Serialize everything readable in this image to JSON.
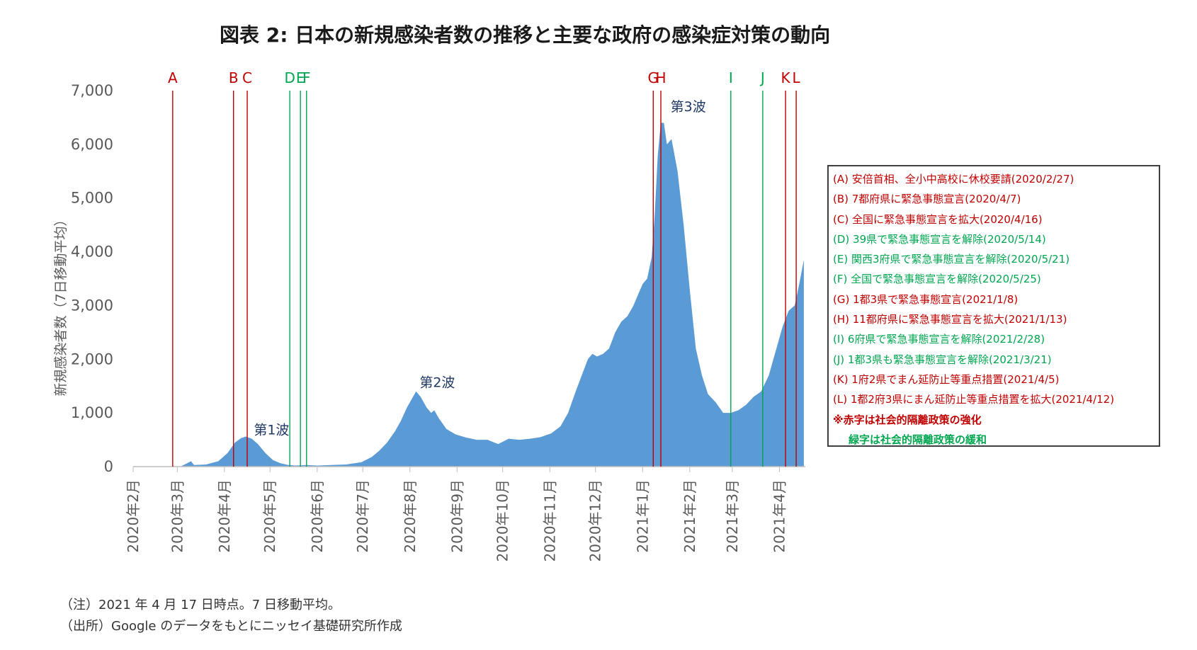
{
  "title": "図表 2: 日本の新規感染者数の推移と主要な政府の感染症対策の動向",
  "colors": {
    "area": "#5b9bd5",
    "tighten": "#c00000",
    "relax": "#00a650",
    "axis": "#595959"
  },
  "chart_data": {
    "type": "area",
    "ylabel": "新規感染者数（7日移動平均）",
    "ylim": [
      0,
      7000
    ],
    "yticks": [
      "0",
      "1,000",
      "2,000",
      "3,000",
      "4,000",
      "5,000",
      "6,000",
      "7,000"
    ],
    "xticks": [
      "2020年2月",
      "2020年3月",
      "2020年4月",
      "2020年5月",
      "2020年6月",
      "2020年7月",
      "2020年8月",
      "2020年9月",
      "2020年10月",
      "2020年11月",
      "2020年12月",
      "2021年1月",
      "2021年2月",
      "2021年3月",
      "2021年4月"
    ],
    "x": [
      "2020-02-01",
      "2020-02-27",
      "2020-03-03",
      "2020-03-08",
      "2020-03-10",
      "2020-03-12",
      "2020-03-20",
      "2020-03-28",
      "2020-04-03",
      "2020-04-08",
      "2020-04-12",
      "2020-04-15",
      "2020-04-19",
      "2020-04-23",
      "2020-04-28",
      "2020-05-03",
      "2020-05-08",
      "2020-05-13",
      "2020-05-18",
      "2020-05-25",
      "2020-06-01",
      "2020-06-10",
      "2020-06-20",
      "2020-06-30",
      "2020-07-07",
      "2020-07-12",
      "2020-07-17",
      "2020-07-22",
      "2020-07-26",
      "2020-07-30",
      "2020-08-03",
      "2020-08-05",
      "2020-08-08",
      "2020-08-12",
      "2020-08-15",
      "2020-08-17",
      "2020-08-20",
      "2020-08-25",
      "2020-08-31",
      "2020-09-07",
      "2020-09-14",
      "2020-09-21",
      "2020-09-28",
      "2020-10-05",
      "2020-10-12",
      "2020-10-19",
      "2020-10-26",
      "2020-11-02",
      "2020-11-08",
      "2020-11-13",
      "2020-11-18",
      "2020-11-22",
      "2020-11-26",
      "2020-11-29",
      "2020-12-02",
      "2020-12-06",
      "2020-12-10",
      "2020-12-14",
      "2020-12-18",
      "2020-12-22",
      "2020-12-26",
      "2020-12-29",
      "2021-01-01",
      "2021-01-04",
      "2021-01-07",
      "2021-01-09",
      "2021-01-11",
      "2021-01-13",
      "2021-01-15",
      "2021-01-17",
      "2021-01-20",
      "2021-01-24",
      "2021-01-28",
      "2021-02-01",
      "2021-02-05",
      "2021-02-09",
      "2021-02-13",
      "2021-02-18",
      "2021-02-23",
      "2021-02-28",
      "2021-03-05",
      "2021-03-10",
      "2021-03-15",
      "2021-03-20",
      "2021-03-25",
      "2021-03-30",
      "2021-04-03",
      "2021-04-07",
      "2021-04-11",
      "2021-04-14",
      "2021-04-17"
    ],
    "values": [
      0,
      0,
      0,
      70,
      100,
      30,
      40,
      100,
      250,
      450,
      530,
      560,
      520,
      420,
      250,
      120,
      60,
      30,
      20,
      30,
      20,
      30,
      40,
      80,
      180,
      300,
      450,
      650,
      850,
      1100,
      1300,
      1400,
      1300,
      1100,
      1000,
      1050,
      900,
      700,
      600,
      540,
      500,
      500,
      420,
      520,
      500,
      520,
      550,
      620,
      750,
      1000,
      1400,
      1700,
      2000,
      2100,
      2050,
      2100,
      2200,
      2500,
      2700,
      2800,
      3000,
      3200,
      3400,
      3500,
      3900,
      4700,
      5800,
      6400,
      6400,
      6000,
      6100,
      5500,
      4500,
      3300,
      2200,
      1700,
      1350,
      1200,
      1000,
      1000,
      1050,
      1150,
      1300,
      1400,
      1700,
      2200,
      2600,
      2900,
      3000,
      3400,
      3850
    ],
    "events": [
      {
        "label": "A",
        "date": "2020-02-27",
        "type": "tighten"
      },
      {
        "label": "B",
        "date": "2020-04-07",
        "type": "tighten"
      },
      {
        "label": "C",
        "date": "2020-04-16",
        "type": "tighten"
      },
      {
        "label": "D",
        "date": "2020-05-14",
        "type": "relax"
      },
      {
        "label": "E",
        "date": "2020-05-21",
        "type": "relax"
      },
      {
        "label": "F",
        "date": "2020-05-25",
        "type": "relax"
      },
      {
        "label": "G",
        "date": "2021-01-08",
        "type": "tighten"
      },
      {
        "label": "H",
        "date": "2021-01-13",
        "type": "tighten"
      },
      {
        "label": "I",
        "date": "2021-02-28",
        "type": "relax"
      },
      {
        "label": "J",
        "date": "2021-03-21",
        "type": "relax"
      },
      {
        "label": "K",
        "date": "2021-04-05",
        "type": "tighten"
      },
      {
        "label": "L",
        "date": "2021-04-12",
        "type": "tighten"
      }
    ],
    "annotations": [
      {
        "text": "第1波",
        "date": "2020-04-18",
        "value": 600
      },
      {
        "text": "第2波",
        "date": "2020-08-05",
        "value": 1480
      },
      {
        "text": "第3波",
        "date": "2021-01-17",
        "value": 6620
      }
    ]
  },
  "legend": {
    "items": [
      {
        "text": "(A) 安倍首相、全小中高校に休校要請(2020/2/27)",
        "type": "tighten"
      },
      {
        "text": "(B) 7都府県に緊急事態宣言(2020/4/7)",
        "type": "tighten"
      },
      {
        "text": "(C) 全国に緊急事態宣言を拡大(2020/4/16)",
        "type": "tighten"
      },
      {
        "text": "(D) 39県で緊急事態宣言を解除(2020/5/14)",
        "type": "relax"
      },
      {
        "text": "(E) 関西3府県で緊急事態宣言を解除(2020/5/21)",
        "type": "relax"
      },
      {
        "text": "(F) 全国で緊急事態宣言を解除(2020/5/25)",
        "type": "relax"
      },
      {
        "text": "(G) 1都3県で緊急事態宣言(2021/1/8)",
        "type": "tighten"
      },
      {
        "text": "(H) 11都府県に緊急事態宣言を拡大(2021/1/13)",
        "type": "tighten"
      },
      {
        "text": "(I) 6府県で緊急事態宣言を解除(2021/2/28)",
        "type": "relax"
      },
      {
        "text": "(J) 1都3県も緊急事態宣言を解除(2021/3/21)",
        "type": "relax"
      },
      {
        "text": "(K) 1府2県でまん延防止等重点措置(2021/4/5)",
        "type": "tighten"
      },
      {
        "text": "(L) 1都2府3県にまん延防止等重点措置を拡大(2021/4/12)",
        "type": "tighten"
      }
    ],
    "note_tighten": "※赤字は社会的隔離政策の強化",
    "note_relax": "緑字は社会的隔離政策の緩和"
  },
  "footnotes": {
    "note": "（注）2021 年 4 月 17 日時点。7 日移動平均。",
    "source": "（出所）Google のデータをもとにニッセイ基礎研究所作成"
  }
}
